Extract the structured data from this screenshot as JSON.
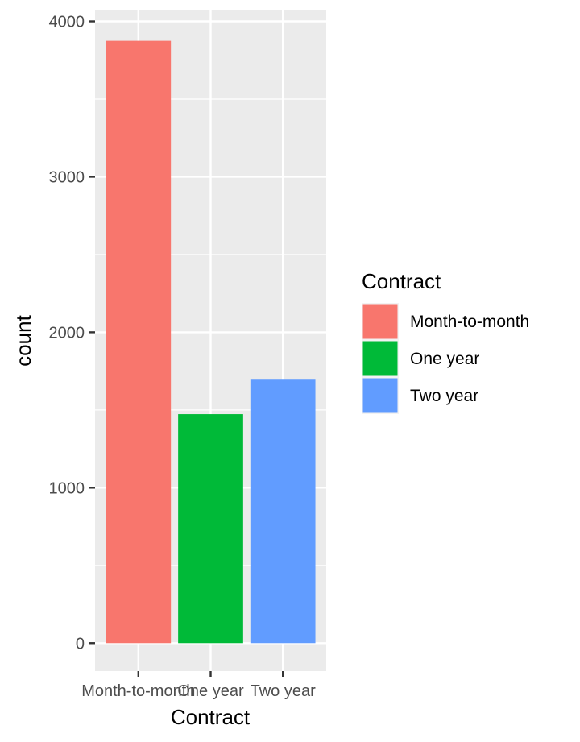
{
  "chart_data": {
    "type": "bar",
    "categories": [
      "Month-to-month",
      "One year",
      "Two year"
    ],
    "values": [
      3875,
      1473,
      1695
    ],
    "xlabel": "Contract",
    "ylabel": "count",
    "ylim": [
      -180,
      4070
    ],
    "yticks": [
      0,
      1000,
      2000,
      3000,
      4000
    ],
    "ytick_labels": [
      "0",
      "1000",
      "2000",
      "3000",
      "4000"
    ],
    "grid": true,
    "panel_background": "#ebebeb",
    "grid_color": "#ffffff",
    "legend": {
      "title": "Contract",
      "position": "right",
      "items": [
        {
          "label": "Month-to-month",
          "color": "#f8766d"
        },
        {
          "label": "One year",
          "color": "#00ba38"
        },
        {
          "label": "Two year",
          "color": "#619cff"
        }
      ]
    }
  }
}
